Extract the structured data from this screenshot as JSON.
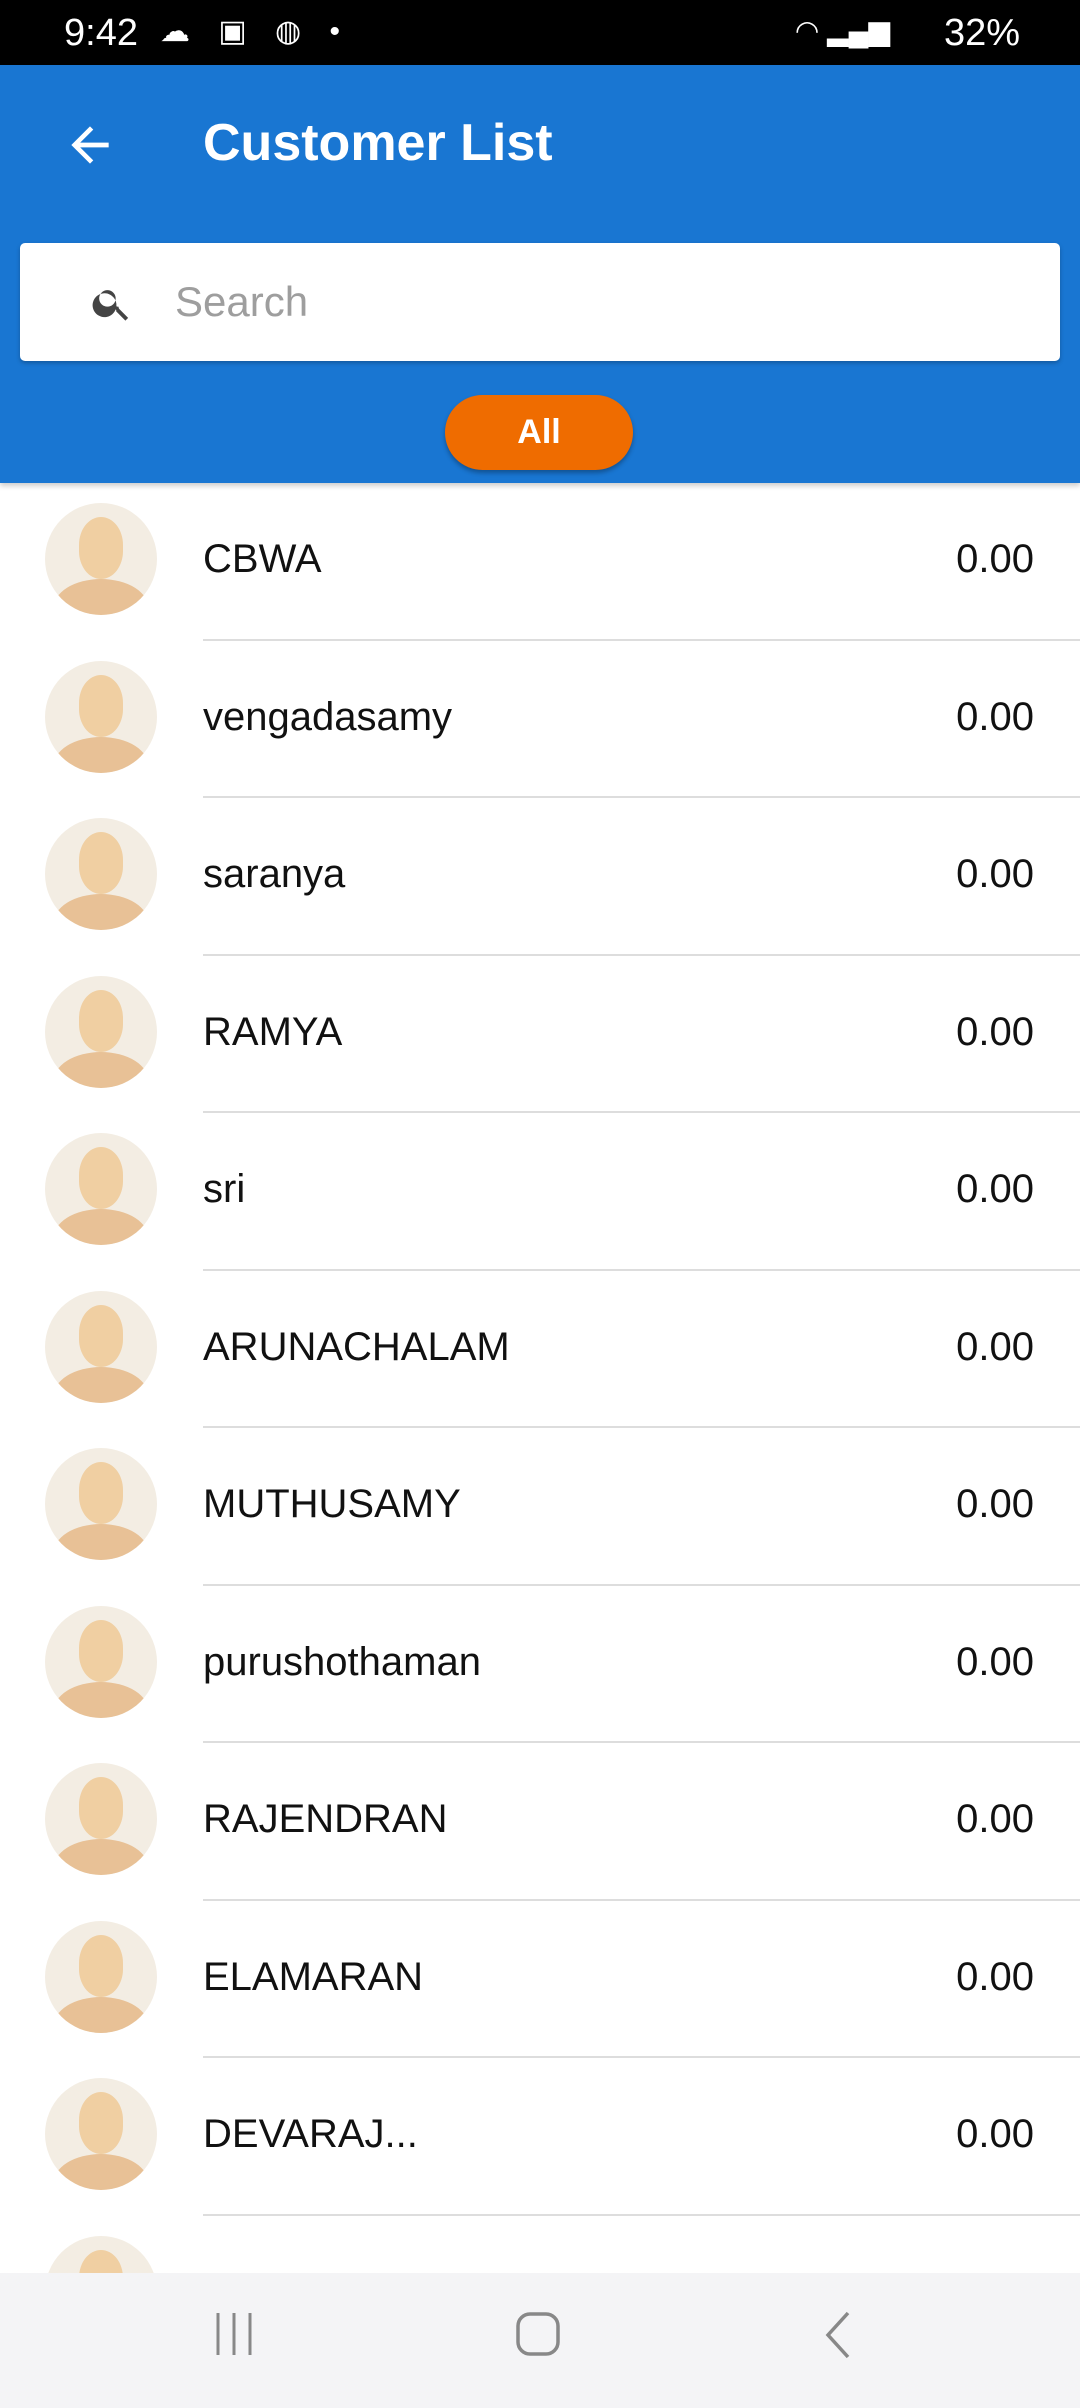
{
  "status_bar": {
    "time": "9:42",
    "battery": "32%"
  },
  "header": {
    "title": "Customer List"
  },
  "search": {
    "placeholder": "Search",
    "value": ""
  },
  "filter": {
    "label": "All"
  },
  "customers": [
    {
      "name": "CBWA",
      "amount": "0.00"
    },
    {
      "name": "vengadasamy",
      "amount": "0.00"
    },
    {
      "name": "saranya",
      "amount": "0.00"
    },
    {
      "name": "RAMYA",
      "amount": "0.00"
    },
    {
      "name": "sri",
      "amount": "0.00"
    },
    {
      "name": "ARUNACHALAM",
      "amount": "0.00"
    },
    {
      "name": "MUTHUSAMY",
      "amount": "0.00"
    },
    {
      "name": "purushothaman",
      "amount": "0.00"
    },
    {
      "name": "RAJENDRAN",
      "amount": "0.00"
    },
    {
      "name": "ELAMARAN",
      "amount": "0.00"
    },
    {
      "name": "DEVARAJ...",
      "amount": "0.00"
    }
  ],
  "colors": {
    "header": "#1976D2",
    "chip": "#EF6C00"
  }
}
